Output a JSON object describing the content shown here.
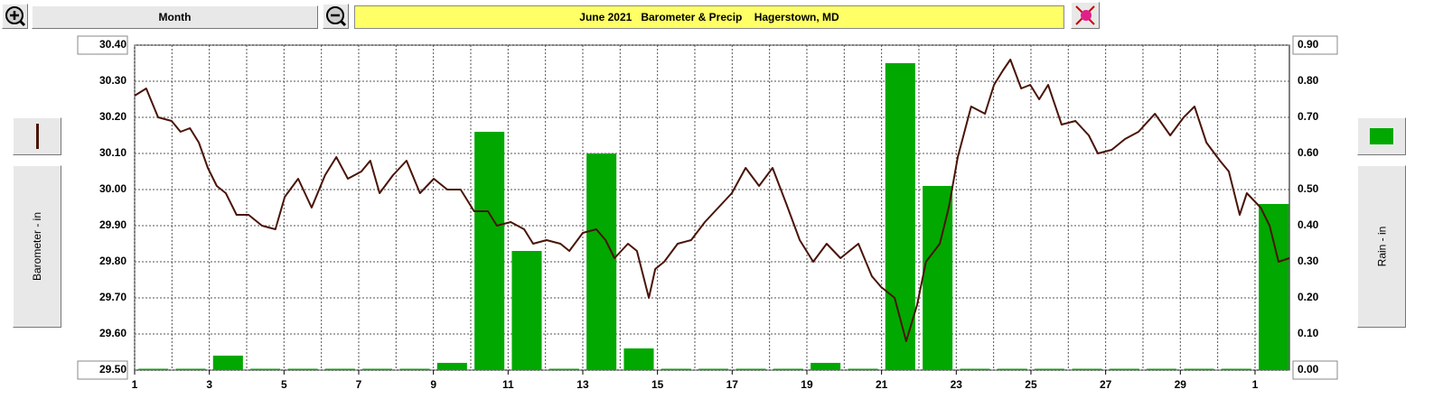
{
  "ui": {
    "range_button": "Month"
  },
  "chart_data": {
    "type": "line-bar",
    "title": "June 2021   Barometer & Precip    Hagerstown, MD",
    "xlim": [
      1,
      31.92
    ],
    "xticks": [
      1,
      3,
      5,
      7,
      9,
      11,
      13,
      15,
      17,
      19,
      21,
      23,
      25,
      27,
      29,
      {
        "value": 31,
        "label": "1"
      }
    ],
    "xminor_ticks": [
      2,
      4,
      6,
      8,
      10,
      12,
      14,
      16,
      18,
      20,
      22,
      24,
      26,
      28,
      30
    ],
    "ylim": [
      29.5,
      30.4
    ],
    "yticks": [
      {
        "value": 29.5,
        "label": "29.50"
      },
      {
        "value": 29.6,
        "label": "29.60"
      },
      {
        "value": 29.7,
        "label": "29.70"
      },
      {
        "value": 29.8,
        "label": "29.80"
      },
      {
        "value": 29.9,
        "label": "29.90"
      },
      {
        "value": 30.0,
        "label": "30.00"
      },
      {
        "value": 30.1,
        "label": "30.10"
      },
      {
        "value": 30.2,
        "label": "30.20"
      },
      {
        "value": 30.3,
        "label": "30.30"
      },
      {
        "value": 30.4,
        "label": "30.40"
      }
    ],
    "y2lim": [
      0,
      0.9
    ],
    "y2ticks": [
      {
        "value": 0,
        "label": "0.00"
      },
      {
        "value": 0.1,
        "label": "0.10"
      },
      {
        "value": 0.2,
        "label": "0.20"
      },
      {
        "value": 0.3,
        "label": "0.30"
      },
      {
        "value": 0.4,
        "label": "0.40"
      },
      {
        "value": 0.5,
        "label": "0.50"
      },
      {
        "value": 0.6,
        "label": "0.60"
      },
      {
        "value": 0.7,
        "label": "0.70"
      },
      {
        "value": 0.8,
        "label": "0.80"
      },
      {
        "value": 0.9,
        "label": "0.90"
      }
    ],
    "grid": true,
    "series": [
      {
        "name": "Barometer - in",
        "type": "line",
        "color": "#4a1408",
        "x": [
          1.0,
          1.31,
          1.63,
          1.99,
          2.23,
          2.48,
          2.72,
          2.96,
          3.2,
          3.44,
          3.73,
          4.05,
          4.41,
          4.77,
          5.02,
          5.38,
          5.74,
          6.1,
          6.4,
          6.71,
          7.07,
          7.31,
          7.56,
          7.92,
          8.28,
          8.64,
          9.01,
          9.37,
          9.73,
          10.09,
          10.46,
          10.7,
          11.07,
          11.43,
          11.67,
          12.03,
          12.4,
          12.64,
          13.0,
          13.36,
          13.61,
          13.85,
          14.21,
          14.45,
          14.77,
          14.94,
          15.18,
          15.54,
          15.9,
          16.27,
          16.63,
          16.99,
          17.36,
          17.72,
          18.08,
          18.45,
          18.81,
          19.17,
          19.53,
          19.9,
          20.38,
          20.74,
          20.99,
          21.35,
          21.66,
          21.95,
          22.19,
          22.56,
          22.8,
          23.04,
          23.4,
          23.77,
          24.01,
          24.25,
          24.45,
          24.74,
          24.98,
          25.22,
          25.46,
          25.82,
          26.19,
          26.55,
          26.79,
          27.16,
          27.52,
          27.88,
          28.32,
          28.73,
          29.09,
          29.38,
          29.7,
          30.06,
          30.3,
          30.59,
          30.78,
          31.15,
          31.39,
          31.63,
          31.92
        ],
        "values": [
          30.26,
          30.28,
          30.2,
          30.19,
          30.16,
          30.17,
          30.13,
          30.06,
          30.01,
          29.99,
          29.93,
          29.93,
          29.9,
          29.89,
          29.98,
          30.03,
          29.95,
          30.04,
          30.09,
          30.03,
          30.05,
          30.08,
          29.99,
          30.04,
          30.08,
          29.99,
          30.03,
          30.0,
          30.0,
          29.94,
          29.94,
          29.9,
          29.91,
          29.89,
          29.85,
          29.86,
          29.85,
          29.83,
          29.88,
          29.89,
          29.86,
          29.81,
          29.85,
          29.83,
          29.7,
          29.78,
          29.8,
          29.85,
          29.86,
          29.91,
          29.95,
          29.99,
          30.06,
          30.01,
          30.06,
          29.96,
          29.86,
          29.8,
          29.85,
          29.81,
          29.85,
          29.76,
          29.73,
          29.7,
          29.58,
          29.68,
          29.8,
          29.85,
          29.95,
          30.09,
          30.23,
          30.21,
          30.29,
          30.33,
          30.36,
          30.28,
          30.29,
          30.25,
          30.29,
          30.18,
          30.19,
          30.15,
          30.1,
          30.11,
          30.14,
          30.16,
          30.21,
          30.15,
          30.2,
          30.23,
          30.13,
          30.08,
          30.05,
          29.93,
          29.99,
          29.95,
          29.9,
          29.8,
          29.81
        ]
      },
      {
        "name": "Rain - in",
        "type": "bar",
        "axis": "y2",
        "color": "#00a800",
        "x": [
          1,
          2,
          3,
          4,
          5,
          6,
          7,
          8,
          9,
          10,
          11,
          12,
          13,
          14,
          15,
          16,
          17,
          18,
          19,
          20,
          21,
          22,
          23,
          24,
          25,
          26,
          27,
          28,
          29,
          30,
          31
        ],
        "values": [
          0,
          0,
          0.04,
          0,
          0,
          0,
          0,
          0,
          0.02,
          0.66,
          0.33,
          0,
          0.6,
          0.06,
          0,
          0,
          0,
          0,
          0.02,
          0,
          0.85,
          0.51,
          0,
          0,
          0,
          0,
          0,
          0,
          0,
          0,
          0.46
        ]
      }
    ]
  }
}
